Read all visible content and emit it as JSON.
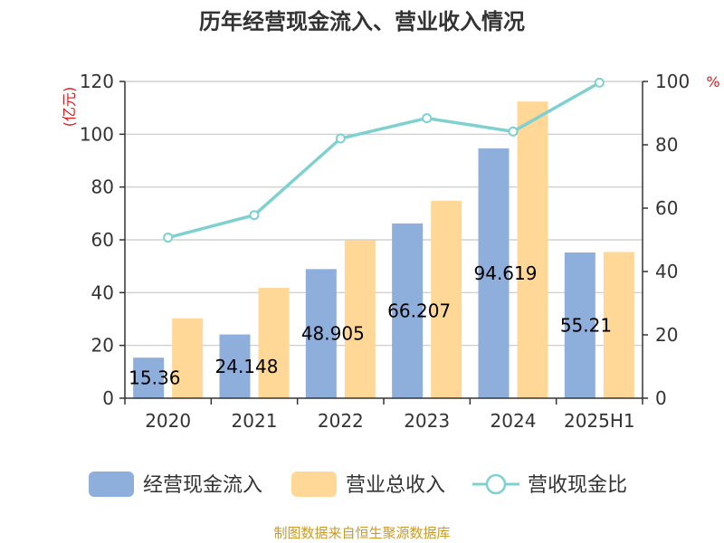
{
  "chart_data": {
    "type": "bar",
    "title": "历年经营现金流入、营业收入情况",
    "categories": [
      "2020",
      "2021",
      "2022",
      "2023",
      "2024",
      "2025H1"
    ],
    "series": [
      {
        "name": "经营现金流入",
        "type": "bar",
        "axis": "left",
        "color": "#8eaedb",
        "values": [
          15.36,
          24.148,
          48.905,
          66.207,
          94.619,
          55.21
        ],
        "labels": [
          "15.36",
          "24.148",
          "48.905",
          "66.207",
          "94.619",
          "55.21"
        ]
      },
      {
        "name": "营业总收入",
        "type": "bar",
        "axis": "left",
        "color": "#ffd898",
        "values": [
          30.3,
          41.8,
          59.8,
          74.8,
          112.4,
          55.4
        ]
      },
      {
        "name": "营收现金比",
        "type": "line",
        "axis": "right",
        "color": "#7fd1d1",
        "values": [
          50.7,
          57.8,
          82.0,
          88.4,
          84.2,
          99.6
        ]
      }
    ],
    "left_axis": {
      "unit": "(亿元)",
      "min": 0,
      "max": 120,
      "ticks": [
        0,
        20,
        40,
        60,
        80,
        100,
        120
      ]
    },
    "right_axis": {
      "unit": "%",
      "min": 0,
      "max": 100,
      "ticks": [
        0,
        20,
        40,
        60,
        80,
        100
      ]
    },
    "grid": true,
    "legend_position": "bottom"
  },
  "source": "制图数据来自恒生聚源数据库"
}
